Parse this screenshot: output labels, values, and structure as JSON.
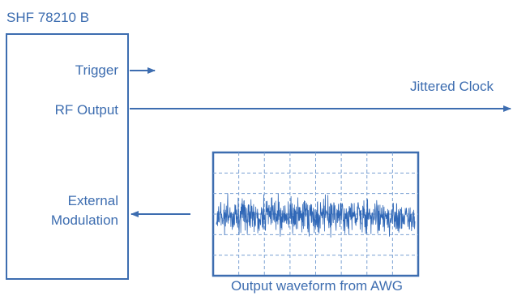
{
  "device": {
    "title": "SHF 78210 B",
    "ports": {
      "trigger": "Trigger",
      "rf_output": "RF Output",
      "external_modulation": [
        "External",
        "Modulation"
      ]
    }
  },
  "signal": {
    "output_label": "Jittered Clock"
  },
  "waveform": {
    "caption": "Output waveform from AWG"
  },
  "colors": {
    "line": "#3d6db0",
    "grid": "#7aa0d2",
    "trace": "#2f67b7",
    "frame": "#3d6db0"
  }
}
